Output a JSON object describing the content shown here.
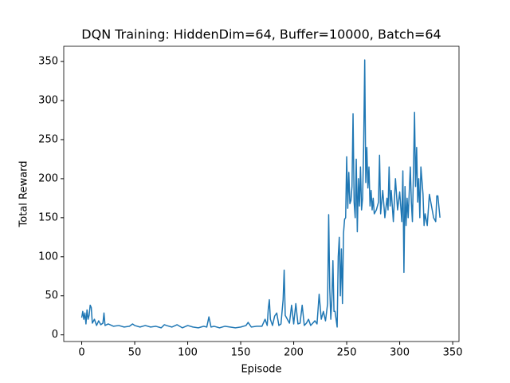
{
  "chart_data": {
    "type": "line",
    "title": "DQN Training: HiddenDim=64, Buffer=10000, Batch=64",
    "x_label": "Episode",
    "y_label": "Total Reward",
    "x": [
      0,
      1,
      2,
      3,
      4,
      5,
      6,
      7,
      8,
      9,
      10,
      12,
      14,
      16,
      18,
      20,
      21,
      22,
      25,
      30,
      35,
      40,
      45,
      48,
      50,
      55,
      60,
      65,
      70,
      75,
      78,
      80,
      85,
      90,
      95,
      100,
      105,
      110,
      115,
      118,
      120,
      122,
      125,
      130,
      135,
      140,
      145,
      150,
      155,
      157,
      160,
      165,
      170,
      173,
      175,
      176,
      177,
      178,
      180,
      182,
      184,
      186,
      188,
      190,
      191,
      192,
      194,
      196,
      198,
      200,
      202,
      204,
      206,
      208,
      210,
      212,
      214,
      216,
      218,
      220,
      222,
      224,
      226,
      228,
      230,
      232,
      233,
      234,
      235,
      236,
      237,
      238,
      239,
      240,
      241,
      242,
      243,
      244,
      245,
      246,
      247,
      248,
      249,
      250,
      251,
      252,
      253,
      254,
      255,
      256,
      257,
      258,
      259,
      260,
      261,
      262,
      263,
      264,
      265,
      266,
      267,
      268,
      269,
      270,
      271,
      272,
      273,
      274,
      275,
      276,
      278,
      280,
      281,
      282,
      284,
      286,
      288,
      289,
      290,
      291,
      292,
      294,
      296,
      298,
      300,
      302,
      303,
      304,
      305,
      306,
      307,
      308,
      310,
      311,
      312,
      313,
      314,
      315,
      316,
      317,
      318,
      319,
      320,
      322,
      323,
      324,
      326,
      328,
      330,
      332,
      334,
      335,
      336,
      338
    ],
    "series": [
      {
        "name": "Total Reward",
        "color": "#1f77b4",
        "values": [
          22,
          30,
          20,
          28,
          14,
          32,
          20,
          25,
          38,
          35,
          15,
          20,
          12,
          18,
          13,
          15,
          28,
          12,
          14,
          11,
          12,
          10,
          11,
          14,
          12,
          10,
          12,
          10,
          11,
          9,
          13,
          12,
          10,
          13,
          9,
          12,
          10,
          9,
          11,
          10,
          23,
          10,
          11,
          9,
          11,
          10,
          9,
          10,
          12,
          16,
          10,
          11,
          11,
          20,
          12,
          33,
          45,
          20,
          12,
          24,
          28,
          12,
          14,
          45,
          83,
          25,
          20,
          15,
          38,
          14,
          40,
          14,
          15,
          38,
          12,
          15,
          20,
          12,
          15,
          18,
          14,
          52,
          20,
          30,
          18,
          40,
          154,
          60,
          20,
          45,
          95,
          30,
          30,
          20,
          10,
          100,
          125,
          50,
          110,
          40,
          130,
          148,
          150,
          228,
          162,
          208,
          168,
          172,
          190,
          283,
          170,
          150,
          225,
          132,
          200,
          165,
          215,
          160,
          175,
          242,
          352,
          195,
          240,
          188,
          215,
          165,
          185,
          160,
          175,
          155,
          160,
          170,
          230,
          155,
          185,
          150,
          175,
          160,
          215,
          165,
          185,
          145,
          200,
          160,
          183,
          145,
          210,
          80,
          190,
          140,
          175,
          150,
          215,
          170,
          145,
          210,
          285,
          190,
          240,
          170,
          200,
          150,
          215,
          180,
          140,
          155,
          140,
          180,
          165,
          150,
          145,
          178,
          178,
          150
        ]
      }
    ],
    "xlim": [
      -16.95,
      355.95
    ],
    "ylim": [
      -8.5,
      369.5
    ],
    "xticks": [
      0,
      50,
      100,
      150,
      200,
      250,
      300,
      350
    ],
    "yticks": [
      0,
      50,
      100,
      150,
      200,
      250,
      300,
      350
    ]
  }
}
